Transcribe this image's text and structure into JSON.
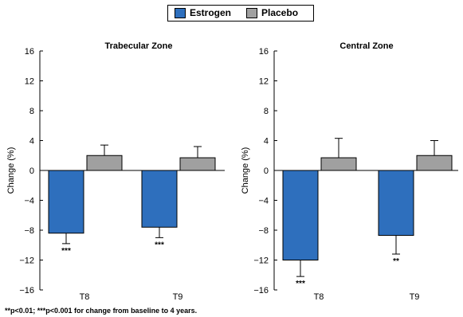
{
  "legend": {
    "items": [
      {
        "label": "Estrogen",
        "color": "#2e6fbd"
      },
      {
        "label": "Placebo",
        "color": "#a0a0a0"
      }
    ]
  },
  "footnote": "**p<0.01; ***p<0.001 for change from baseline to 4 years.",
  "chart_data": [
    {
      "type": "bar",
      "title": "Trabecular Zone",
      "ylabel": "Change (%)",
      "xlabel": "",
      "ylim": [
        -16,
        16
      ],
      "yticks": [
        -16,
        -12,
        -8,
        -4,
        0,
        4,
        8,
        12,
        16
      ],
      "categories": [
        "T8",
        "T9"
      ],
      "series": [
        {
          "name": "Estrogen",
          "color": "#2e6fbd",
          "values": [
            -8.4,
            -7.6
          ],
          "error": [
            1.4,
            1.4
          ],
          "significance": [
            "***",
            "***"
          ]
        },
        {
          "name": "Placebo",
          "color": "#a0a0a0",
          "values": [
            2.0,
            1.7
          ],
          "error": [
            1.4,
            1.5
          ],
          "significance": [
            "",
            ""
          ]
        }
      ],
      "grid": false
    },
    {
      "type": "bar",
      "title": "Central Zone",
      "ylabel": "Change (%)",
      "xlabel": "",
      "ylim": [
        -16,
        16
      ],
      "yticks": [
        -16,
        -12,
        -8,
        -4,
        0,
        4,
        8,
        12,
        16
      ],
      "categories": [
        "T8",
        "T9"
      ],
      "series": [
        {
          "name": "Estrogen",
          "color": "#2e6fbd",
          "values": [
            -12.0,
            -8.7
          ],
          "error": [
            2.2,
            2.5
          ],
          "significance": [
            "***",
            "**"
          ]
        },
        {
          "name": "Placebo",
          "color": "#a0a0a0",
          "values": [
            1.7,
            2.0
          ],
          "error": [
            2.6,
            2.0
          ],
          "significance": [
            "",
            ""
          ]
        }
      ],
      "grid": false
    }
  ]
}
